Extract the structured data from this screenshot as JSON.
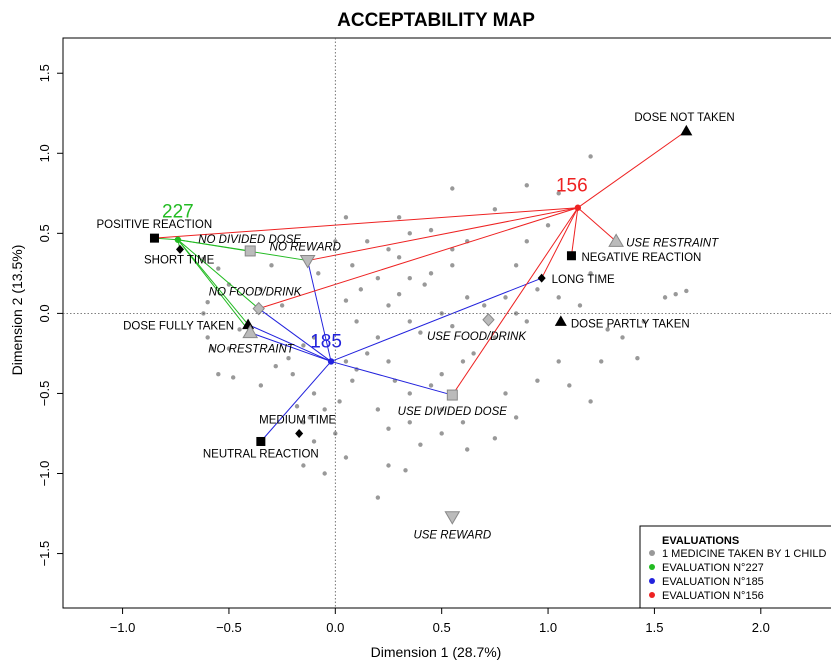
{
  "chart_data": {
    "type": "scatter",
    "title": "ACCEPTABILITY MAP",
    "xlabel": "Dimension 1 (28.7%)",
    "ylabel": "Dimension 2 (13.5%)",
    "xlim": [
      -1.28,
      2.33
    ],
    "ylim": [
      -1.84,
      1.72
    ],
    "xticks": [
      -1.0,
      -0.5,
      0.0,
      0.5,
      1.0,
      1.5,
      2.0
    ],
    "xtick_labels": [
      "−1.0",
      "−0.5",
      "0.0",
      "0.5",
      "1.0",
      "1.5",
      "2.0"
    ],
    "yticks": [
      -1.5,
      -1.0,
      -0.5,
      0.0,
      0.5,
      1.0,
      1.5
    ],
    "ytick_labels": [
      "−1.5",
      "−1.0",
      "−0.5",
      "0.0",
      "0.5",
      "1.0",
      "1.5"
    ],
    "grid": false,
    "reference_lines": [
      0,
      0
    ],
    "background_points": [
      [
        -0.62,
        0.34
      ],
      [
        -0.55,
        0.28
      ],
      [
        -0.5,
        0.18
      ],
      [
        -0.6,
        0.07
      ],
      [
        -0.62,
        0.0
      ],
      [
        -0.45,
        -0.1
      ],
      [
        -0.5,
        -0.22
      ],
      [
        -0.55,
        -0.38
      ],
      [
        -0.48,
        -0.4
      ],
      [
        -0.35,
        -0.45
      ],
      [
        -0.28,
        -0.33
      ],
      [
        -0.22,
        -0.28
      ],
      [
        -0.15,
        -0.2
      ],
      [
        -0.1,
        -0.15
      ],
      [
        -0.2,
        -0.38
      ],
      [
        -0.1,
        -0.5
      ],
      [
        -0.18,
        -0.58
      ],
      [
        -0.12,
        -0.65
      ],
      [
        -0.1,
        -0.8
      ],
      [
        -0.15,
        -0.95
      ],
      [
        -0.05,
        -1.0
      ],
      [
        0.0,
        -0.75
      ],
      [
        0.05,
        -0.9
      ],
      [
        -0.05,
        -0.6
      ],
      [
        0.02,
        -0.55
      ],
      [
        0.08,
        -0.42
      ],
      [
        0.1,
        -0.35
      ],
      [
        0.05,
        -0.3
      ],
      [
        0.15,
        -0.25
      ],
      [
        0.2,
        -0.15
      ],
      [
        0.1,
        -0.05
      ],
      [
        0.05,
        0.08
      ],
      [
        0.12,
        0.15
      ],
      [
        0.2,
        0.22
      ],
      [
        0.08,
        0.3
      ],
      [
        0.0,
        0.45
      ],
      [
        0.05,
        0.6
      ],
      [
        0.15,
        0.45
      ],
      [
        0.25,
        0.4
      ],
      [
        0.3,
        0.35
      ],
      [
        0.35,
        0.5
      ],
      [
        0.3,
        0.6
      ],
      [
        0.45,
        0.52
      ],
      [
        0.55,
        0.4
      ],
      [
        0.62,
        0.45
      ],
      [
        0.55,
        0.3
      ],
      [
        0.45,
        0.25
      ],
      [
        0.42,
        0.18
      ],
      [
        0.35,
        0.22
      ],
      [
        0.3,
        0.12
      ],
      [
        0.25,
        0.05
      ],
      [
        0.35,
        -0.05
      ],
      [
        0.4,
        -0.12
      ],
      [
        0.5,
        0.0
      ],
      [
        0.55,
        -0.08
      ],
      [
        0.62,
        0.1
      ],
      [
        0.7,
        0.05
      ],
      [
        0.8,
        0.1
      ],
      [
        0.85,
        0.0
      ],
      [
        0.9,
        -0.05
      ],
      [
        0.75,
        -0.15
      ],
      [
        0.65,
        -0.25
      ],
      [
        0.6,
        -0.3
      ],
      [
        0.5,
        -0.38
      ],
      [
        0.45,
        -0.45
      ],
      [
        0.35,
        -0.5
      ],
      [
        0.28,
        -0.42
      ],
      [
        0.25,
        -0.3
      ],
      [
        0.2,
        -0.6
      ],
      [
        0.25,
        -0.72
      ],
      [
        0.35,
        -0.68
      ],
      [
        0.4,
        -0.82
      ],
      [
        0.5,
        -0.75
      ],
      [
        0.6,
        -0.68
      ],
      [
        0.62,
        -0.85
      ],
      [
        0.75,
        -0.78
      ],
      [
        0.85,
        -0.65
      ],
      [
        0.8,
        -0.5
      ],
      [
        0.95,
        -0.42
      ],
      [
        1.05,
        -0.3
      ],
      [
        1.1,
        -0.45
      ],
      [
        1.2,
        -0.55
      ],
      [
        1.25,
        -0.3
      ],
      [
        1.35,
        -0.15
      ],
      [
        1.45,
        -0.05
      ],
      [
        1.55,
        0.1
      ],
      [
        1.6,
        0.12
      ],
      [
        1.65,
        0.14
      ],
      [
        1.42,
        -0.28
      ],
      [
        1.28,
        -0.1
      ],
      [
        1.15,
        0.05
      ],
      [
        1.05,
        0.1
      ],
      [
        0.95,
        0.15
      ],
      [
        0.85,
        0.3
      ],
      [
        0.9,
        0.45
      ],
      [
        1.0,
        0.55
      ],
      [
        1.1,
        0.35
      ],
      [
        1.2,
        0.25
      ],
      [
        1.05,
        0.75
      ],
      [
        0.75,
        0.65
      ],
      [
        0.9,
        0.8
      ],
      [
        1.2,
        0.98
      ],
      [
        0.55,
        0.78
      ],
      [
        -0.08,
        0.25
      ],
      [
        -0.3,
        0.3
      ],
      [
        -0.35,
        0.15
      ],
      [
        -0.25,
        0.05
      ],
      [
        0.25,
        -0.95
      ],
      [
        0.33,
        -0.98
      ],
      [
        0.2,
        -1.15
      ],
      [
        -0.15,
        -0.68
      ],
      [
        0.5,
        -0.6
      ],
      [
        -0.6,
        -0.15
      ],
      [
        -0.58,
        -0.22
      ]
    ],
    "modalities": [
      {
        "label": "DOSE NOT TAKEN",
        "x": 1.65,
        "y": 1.14,
        "shape": "triangle",
        "italic": false,
        "label_dx": -52,
        "label_dy": -10,
        "anchor": "start"
      },
      {
        "label": "USE RESTRAINT",
        "x": 1.32,
        "y": 0.45,
        "shape": "gray-triangle",
        "italic": true,
        "label_dx": 10,
        "label_dy": 5,
        "anchor": "start"
      },
      {
        "label": "NEGATIVE REACTION",
        "x": 1.11,
        "y": 0.36,
        "shape": "square",
        "italic": false,
        "label_dx": 10,
        "label_dy": 5,
        "anchor": "start"
      },
      {
        "label": "LONG TIME",
        "x": 0.97,
        "y": 0.22,
        "shape": "diamond",
        "italic": false,
        "label_dx": 10,
        "label_dy": 5,
        "anchor": "start"
      },
      {
        "label": "DOSE PARTLY TAKEN",
        "x": 1.06,
        "y": -0.05,
        "shape": "triangle",
        "italic": false,
        "label_dx": 10,
        "label_dy": 6,
        "anchor": "start"
      },
      {
        "label": "USE FOOD/DRINK",
        "x": 0.72,
        "y": -0.04,
        "shape": "gray-diamond",
        "italic": true,
        "label_dx": -12,
        "label_dy": 20,
        "anchor": "middle"
      },
      {
        "label": "USE DIVIDED DOSE",
        "x": 0.55,
        "y": -0.51,
        "shape": "gray-square",
        "italic": true,
        "label_dx": 0,
        "label_dy": 20,
        "anchor": "middle"
      },
      {
        "label": "USE REWARD",
        "x": 0.55,
        "y": -1.27,
        "shape": "gray-invtriangle",
        "italic": true,
        "label_dx": 0,
        "label_dy": 22,
        "anchor": "middle"
      },
      {
        "label": "POSITIVE REACTION",
        "x": -0.85,
        "y": 0.47,
        "shape": "square",
        "italic": false,
        "label_dx": -58,
        "label_dy": -10,
        "anchor": "start"
      },
      {
        "label": "SHORT TIME",
        "x": -0.73,
        "y": 0.4,
        "shape": "diamond",
        "italic": false,
        "label_dx": -36,
        "label_dy": 14,
        "anchor": "start"
      },
      {
        "label": "NO DIVIDED DOSE",
        "x": -0.4,
        "y": 0.39,
        "shape": "gray-square",
        "italic": true,
        "label_dx": -52,
        "label_dy": -8,
        "anchor": "start"
      },
      {
        "label": "NO REWARD",
        "x": -0.13,
        "y": 0.33,
        "shape": "gray-invtriangle",
        "italic": true,
        "label_dx": -38,
        "label_dy": -10,
        "anchor": "start"
      },
      {
        "label": "NO FOOD/DRINK",
        "x": -0.36,
        "y": 0.03,
        "shape": "gray-diamond",
        "italic": true,
        "label_dx": -50,
        "label_dy": -13,
        "anchor": "start"
      },
      {
        "label": "DOSE FULLY TAKEN",
        "x": -0.41,
        "y": -0.07,
        "shape": "triangle",
        "italic": false,
        "label_dx": -125,
        "label_dy": 5,
        "anchor": "start"
      },
      {
        "label": "NO RESTRAINT",
        "x": -0.4,
        "y": -0.12,
        "shape": "gray-triangle",
        "italic": true,
        "label_dx": -42,
        "label_dy": 20,
        "anchor": "start"
      },
      {
        "label": "MEDIUM TIME",
        "x": -0.17,
        "y": -0.75,
        "shape": "diamond",
        "italic": false,
        "label_dx": -40,
        "label_dy": -10,
        "anchor": "start"
      },
      {
        "label": "NEUTRAL REACTION",
        "x": -0.35,
        "y": -0.8,
        "shape": "square",
        "italic": false,
        "label_dx": -58,
        "label_dy": 16,
        "anchor": "start"
      }
    ],
    "series": [
      {
        "name": "227",
        "label": "227",
        "color": "#22bb22",
        "center": [
          -0.74,
          0.46
        ],
        "targets": [
          [
            -0.85,
            0.47
          ],
          [
            -0.73,
            0.4
          ],
          [
            -0.4,
            0.39
          ],
          [
            -0.13,
            0.33
          ],
          [
            -0.36,
            0.03
          ],
          [
            -0.41,
            -0.07
          ],
          [
            -0.4,
            -0.12
          ]
        ],
        "label_offset": [
          0,
          -22
        ]
      },
      {
        "name": "185",
        "label": "185",
        "color": "#2222dd",
        "center": [
          -0.02,
          -0.3
        ],
        "targets": [
          [
            -0.13,
            0.33
          ],
          [
            0.97,
            0.22
          ],
          [
            0.55,
            -0.51
          ],
          [
            -0.36,
            0.03
          ],
          [
            -0.41,
            -0.07
          ],
          [
            -0.4,
            -0.12
          ],
          [
            -0.35,
            -0.8
          ]
        ],
        "label_offset": [
          -5,
          -14
        ]
      },
      {
        "name": "156",
        "label": "156",
        "color": "#ee2222",
        "center": [
          1.14,
          0.66
        ],
        "targets": [
          [
            1.65,
            1.14
          ],
          [
            1.32,
            0.45
          ],
          [
            1.11,
            0.36
          ],
          [
            0.97,
            0.22
          ],
          [
            0.55,
            -0.51
          ],
          [
            -0.13,
            0.33
          ],
          [
            -0.36,
            0.03
          ],
          [
            -0.85,
            0.47
          ]
        ],
        "label_offset": [
          -6,
          -16
        ]
      }
    ],
    "legend": {
      "placement": "bottom-right",
      "title": "EVALUATIONS",
      "items": [
        {
          "label": "1 MEDICINE TAKEN BY 1 CHILD",
          "color": "#999999"
        },
        {
          "label": "EVALUATION N°227",
          "color": "#22bb22"
        },
        {
          "label": "EVALUATION N°185",
          "color": "#2222dd"
        },
        {
          "label": "EVALUATION N°156",
          "color": "#ee2222"
        }
      ]
    }
  }
}
